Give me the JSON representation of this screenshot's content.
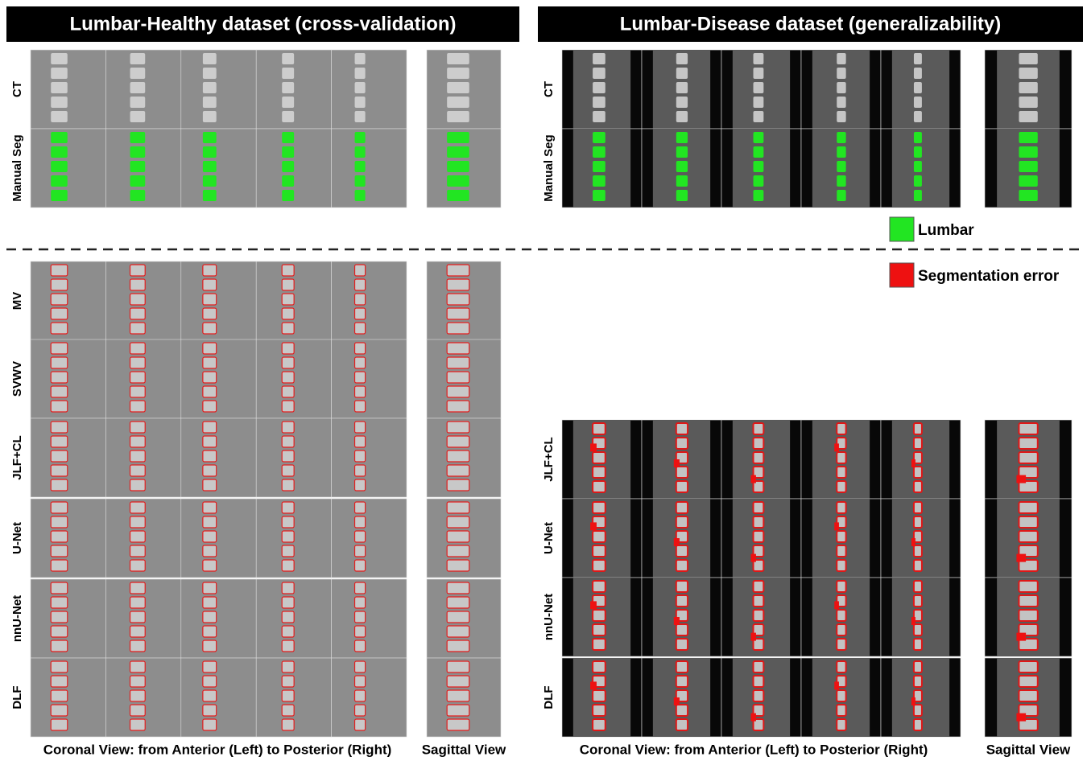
{
  "panels": [
    {
      "title": "Lumbar-Healthy dataset (cross-validation)",
      "rows": [
        "CT",
        "Manual Seg",
        "MV",
        "SVWV",
        "JLF+CL",
        "U-Net",
        "nnU-Net",
        "DLF"
      ],
      "captions": [
        "Coronal View: from Anterior (Left) to Posterior (Right)",
        "Sagittal View"
      ]
    },
    {
      "title": "Lumbar-Disease dataset (generalizability)",
      "rows": [
        "CT",
        "Manual Seg",
        "JLF+CL",
        "U-Net",
        "nnU-Net",
        "DLF"
      ],
      "captions": [
        "Coronal View: from Anterior (Left) to Posterior (Right)",
        "Sagittal View"
      ]
    }
  ],
  "legend": [
    "Lumbar",
    "Segmentation error"
  ]
}
